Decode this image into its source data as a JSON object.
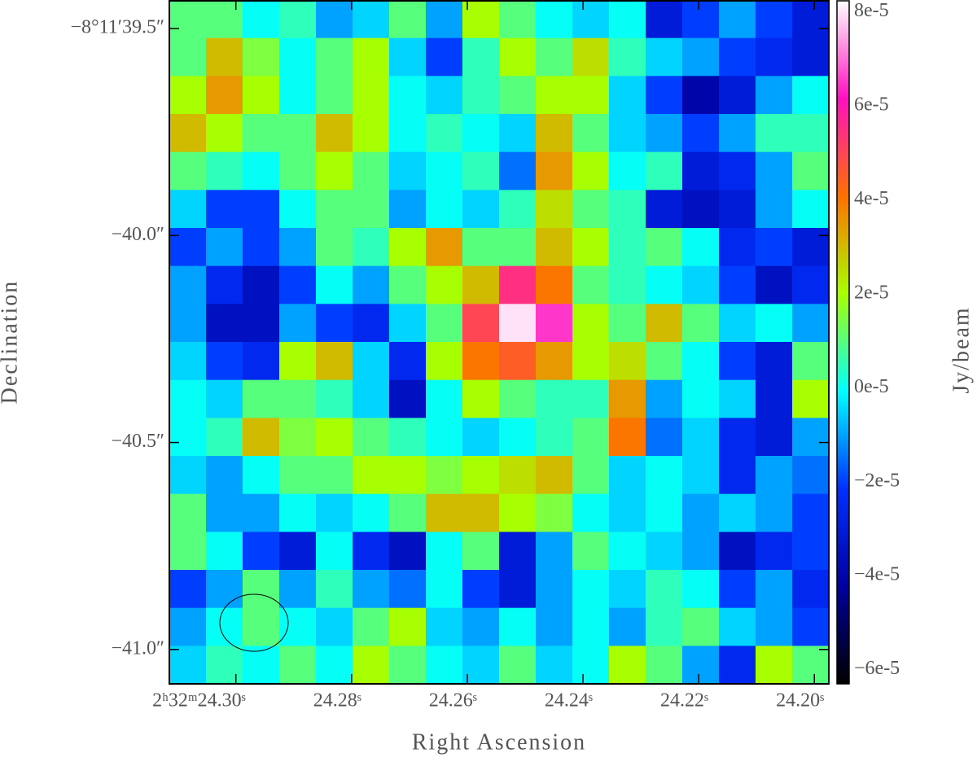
{
  "chart_data": {
    "type": "heatmap",
    "xlabel": "Right Ascension",
    "ylabel": "Declination",
    "colorbar_label": "Jy/beam",
    "xlim": [
      24.3115,
      24.1975
    ],
    "xticks": [
      {
        "value": 24.3,
        "label": "2ʰ32ᵐ24.30ˢ"
      },
      {
        "value": 24.28,
        "label": "24.28ˢ"
      },
      {
        "value": 24.26,
        "label": "24.26ˢ"
      },
      {
        "value": 24.24,
        "label": "24.24ˢ"
      },
      {
        "value": 24.22,
        "label": "24.22ˢ"
      },
      {
        "value": 24.2,
        "label": "24.20ˢ"
      }
    ],
    "ylim": [
      -41.083,
      -39.431
    ],
    "yticks": [
      {
        "value": -39.5,
        "label": "−8°11′39.5″"
      },
      {
        "value": -40.0,
        "label": "−40.0″"
      },
      {
        "value": -40.5,
        "label": "−40.5″"
      },
      {
        "value": -41.0,
        "label": "−41.0″"
      }
    ],
    "clim": [
      -6.3e-05,
      8.25e-05
    ],
    "cticks": [
      {
        "value": 8e-05,
        "label": "8e-5"
      },
      {
        "value": 6e-05,
        "label": "6e-5"
      },
      {
        "value": 4e-05,
        "label": "4e-5"
      },
      {
        "value": 2e-05,
        "label": "2e-5"
      },
      {
        "value": 0,
        "label": "0e-5"
      },
      {
        "value": -2e-05,
        "label": "−2e-5"
      },
      {
        "value": -4e-05,
        "label": "−4e-5"
      },
      {
        "value": -6e-05,
        "label": "−6e-5"
      }
    ],
    "colormap": [
      "#000000",
      "#0000a0",
      "#0030ff",
      "#00ffff",
      "#a8ff00",
      "#ff7000",
      "#ff10c0",
      "#ffffff"
    ],
    "z": [
      [
        1e-05,
        1e-05,
        0,
        5e-06,
        -1e-05,
        -5e-06,
        1e-05,
        -1e-05,
        2e-05,
        1e-05,
        0,
        -5e-06,
        0,
        -3e-05,
        -2e-05,
        -1e-05,
        -2e-05,
        -3e-05
      ],
      [
        1e-05,
        3e-05,
        1.5e-05,
        0,
        1e-05,
        2e-05,
        -5e-06,
        -2e-05,
        5e-06,
        2e-05,
        1e-05,
        2.5e-05,
        5e-06,
        -5e-06,
        -1e-05,
        -2e-05,
        -2.5e-05,
        -3e-05
      ],
      [
        2e-05,
        3.5e-05,
        2e-05,
        0,
        1e-05,
        2e-05,
        0,
        -5e-06,
        5e-06,
        1e-05,
        2e-05,
        2e-05,
        -5e-06,
        -2e-05,
        -4e-05,
        -3e-05,
        -1e-05,
        0
      ],
      [
        3e-05,
        2e-05,
        1e-05,
        1e-05,
        3e-05,
        2e-05,
        0,
        5e-06,
        0,
        -5e-06,
        3e-05,
        1e-05,
        -5e-06,
        -1e-05,
        -2e-05,
        -1e-05,
        5e-06,
        5e-06
      ],
      [
        1e-05,
        5e-06,
        0,
        1e-05,
        2e-05,
        1e-05,
        -5e-06,
        0,
        5e-06,
        -1.5e-05,
        3.5e-05,
        2e-05,
        0,
        5e-06,
        -3e-05,
        -2.5e-05,
        -1e-05,
        1e-05
      ],
      [
        -5e-06,
        -2e-05,
        -2e-05,
        0,
        1e-05,
        1e-05,
        -1e-05,
        0,
        -5e-06,
        5e-06,
        2.5e-05,
        1e-05,
        5e-06,
        -3e-05,
        -3.5e-05,
        -3e-05,
        -1e-05,
        0
      ],
      [
        -2e-05,
        -1e-05,
        -2e-05,
        -1e-05,
        1e-05,
        5e-06,
        2e-05,
        3.5e-05,
        1e-05,
        1e-05,
        3e-05,
        2e-05,
        5e-06,
        1e-05,
        0,
        -2.5e-05,
        -2e-05,
        -3e-05
      ],
      [
        -1e-05,
        -2.5e-05,
        -3.5e-05,
        -2e-05,
        0,
        -1e-05,
        1e-05,
        2e-05,
        3e-05,
        5.5e-05,
        4e-05,
        1e-05,
        5e-06,
        0,
        -5e-06,
        -2e-05,
        -3.5e-05,
        -2.5e-05
      ],
      [
        -1e-05,
        -3.5e-05,
        -3.5e-05,
        -1e-05,
        -2e-05,
        -2.5e-05,
        -5e-06,
        1e-05,
        5e-05,
        8e-05,
        6.5e-05,
        2e-05,
        1e-05,
        3e-05,
        1e-05,
        -5e-06,
        0,
        -1e-05
      ],
      [
        -5e-06,
        -2e-05,
        -2.5e-05,
        2e-05,
        3e-05,
        -5e-06,
        -2.5e-05,
        2e-05,
        4e-05,
        4.5e-05,
        3.5e-05,
        2e-05,
        2.5e-05,
        1e-05,
        0,
        -2e-05,
        -3e-05,
        1e-05
      ],
      [
        0,
        -5e-06,
        1e-05,
        1e-05,
        5e-06,
        -5e-06,
        -3.5e-05,
        0,
        2e-05,
        1e-05,
        5e-06,
        5e-06,
        3.5e-05,
        -1e-05,
        0,
        -5e-06,
        -3e-05,
        2e-05
      ],
      [
        0,
        5e-06,
        3e-05,
        1.5e-05,
        2e-05,
        1e-05,
        5e-06,
        0,
        -5e-06,
        0,
        5e-06,
        1e-05,
        4e-05,
        -1.5e-05,
        -5e-06,
        -2.5e-05,
        -3e-05,
        -1e-05
      ],
      [
        -5e-06,
        -1e-05,
        0,
        1e-05,
        1e-05,
        2e-05,
        2e-05,
        1.5e-05,
        2e-05,
        2.5e-05,
        3e-05,
        1e-05,
        -5e-06,
        0,
        -5e-06,
        -2.5e-05,
        -1e-05,
        -1.5e-05
      ],
      [
        1e-05,
        -1e-05,
        -1e-05,
        0,
        -5e-06,
        0,
        1e-05,
        3e-05,
        3e-05,
        2e-05,
        1.5e-05,
        0,
        -5e-06,
        0,
        -1e-05,
        -5e-06,
        -1e-05,
        -2e-05
      ],
      [
        1e-05,
        0,
        -2e-05,
        -3e-05,
        0,
        -2.5e-05,
        -3.5e-05,
        0,
        1e-05,
        -3e-05,
        -1e-05,
        1e-05,
        0,
        -5e-06,
        -1e-05,
        -3.5e-05,
        -2.5e-05,
        -2e-05
      ],
      [
        -2e-05,
        -1e-05,
        1e-05,
        -1e-05,
        5e-06,
        -1e-05,
        -1.5e-05,
        0,
        -2e-05,
        -3e-05,
        -1e-05,
        0,
        -5e-06,
        5e-06,
        0,
        -2e-05,
        -1e-05,
        -2.5e-05
      ],
      [
        -1e-05,
        0,
        1e-05,
        0,
        -5e-06,
        1e-05,
        2e-05,
        -5e-06,
        -1e-05,
        0,
        -1e-05,
        0,
        -1e-05,
        5e-06,
        1e-05,
        -5e-06,
        -1e-05,
        -2e-05
      ],
      [
        -5e-06,
        5e-06,
        0,
        1e-05,
        0,
        2e-05,
        1e-05,
        0,
        -5e-06,
        1e-05,
        -5e-06,
        0,
        2e-05,
        1e-05,
        -1e-05,
        -2.5e-05,
        2e-05,
        1e-05
      ]
    ]
  }
}
